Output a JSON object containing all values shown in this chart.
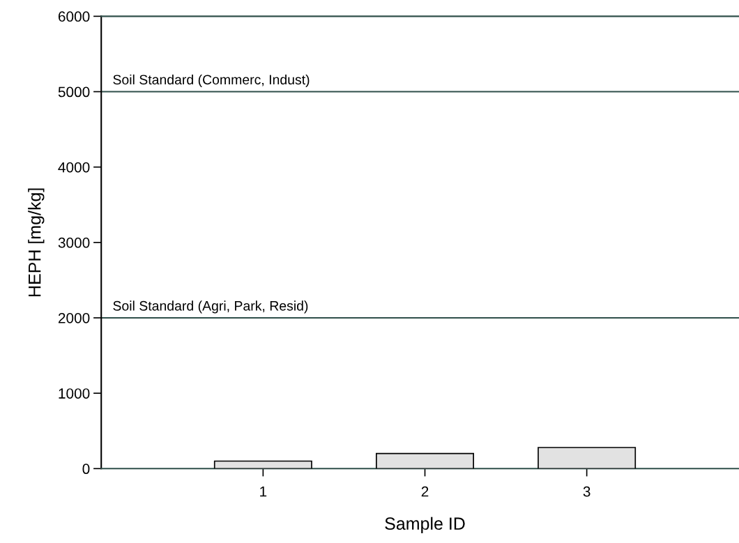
{
  "chart_data": {
    "type": "bar",
    "xlabel": "Sample ID",
    "ylabel": "HEPH [mg/kg]",
    "categories": [
      "1",
      "2",
      "3"
    ],
    "series": [
      {
        "color": "#e2e2e2",
        "values": [
          100,
          200,
          280
        ]
      }
    ],
    "ylim": [
      0,
      6000
    ],
    "yticks": [
      0,
      1000,
      2000,
      3000,
      4000,
      5000,
      6000
    ],
    "grid": false,
    "legend": false,
    "ref_lines": [
      {
        "axis": "y",
        "value": 5000,
        "label": "Soil Standard (Commerc, Indust)",
        "color": "#2f4f4a"
      },
      {
        "axis": "y",
        "value": 2000,
        "label": "Soil Standard (Agri, Park, Resid)",
        "color": "#2f4f4a"
      }
    ]
  }
}
